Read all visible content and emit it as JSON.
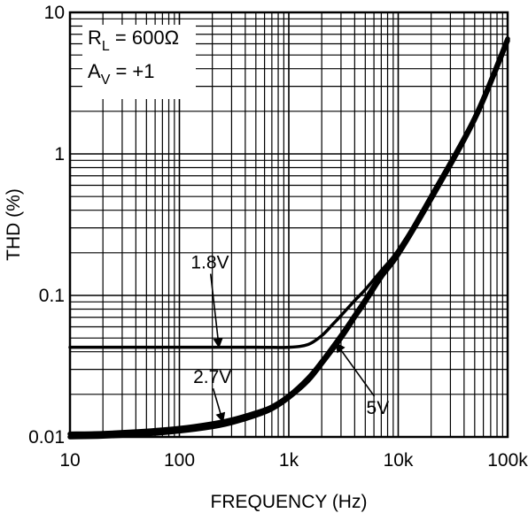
{
  "chart_data": {
    "type": "line",
    "xlabel": "FREQUENCY (Hz)",
    "ylabel": "THD (%)",
    "x_scale": "log",
    "y_scale": "log",
    "xlim": [
      10,
      100000
    ],
    "ylim": [
      0.01,
      10
    ],
    "grid": true,
    "x_ticks": [
      {
        "value": 10,
        "label": "10"
      },
      {
        "value": 100,
        "label": "100"
      },
      {
        "value": 1000,
        "label": "1k"
      },
      {
        "value": 10000,
        "label": "10k"
      },
      {
        "value": 100000,
        "label": "100k"
      }
    ],
    "y_ticks": [
      {
        "value": 0.01,
        "label": "0.01"
      },
      {
        "value": 0.1,
        "label": "0.1"
      },
      {
        "value": 1,
        "label": "1"
      },
      {
        "value": 10,
        "label": "10"
      }
    ],
    "conditions": [
      {
        "main": "R",
        "sub": "L",
        "rest": " = 600Ω"
      },
      {
        "main": "A",
        "sub": "V",
        "rest": " = +1"
      }
    ],
    "series": [
      {
        "name": "1.8V",
        "stroke_weight": "medium",
        "x": [
          10,
          100,
          500,
          1000,
          1500,
          2000,
          2500,
          3000,
          4000,
          5000,
          7000,
          10000,
          20000,
          50000,
          100000
        ],
        "y": [
          0.043,
          0.043,
          0.043,
          0.043,
          0.045,
          0.052,
          0.062,
          0.072,
          0.092,
          0.11,
          0.15,
          0.21,
          0.5,
          1.8,
          6.2
        ]
      },
      {
        "name": "2.7V",
        "stroke_weight": "thick",
        "x": [
          10,
          20,
          50,
          100,
          200,
          300,
          500,
          700,
          1000,
          1500,
          2000,
          3000,
          4000,
          5000,
          7000,
          10000,
          20000,
          50000,
          100000
        ],
        "y": [
          0.0105,
          0.0106,
          0.011,
          0.0115,
          0.0124,
          0.0132,
          0.0148,
          0.0163,
          0.0195,
          0.026,
          0.034,
          0.052,
          0.072,
          0.093,
          0.14,
          0.2,
          0.5,
          1.8,
          6.5
        ]
      },
      {
        "name": "5V",
        "stroke_weight": "thick",
        "x": [
          10,
          20,
          50,
          100,
          200,
          300,
          500,
          700,
          1000,
          1500,
          2000,
          3000,
          4000,
          5000,
          7000,
          10000,
          20000,
          50000,
          100000
        ],
        "y": [
          0.01,
          0.0101,
          0.0105,
          0.011,
          0.0118,
          0.0126,
          0.0142,
          0.0158,
          0.019,
          0.025,
          0.033,
          0.05,
          0.07,
          0.09,
          0.135,
          0.195,
          0.48,
          1.75,
          6.3
        ]
      }
    ],
    "annotations": [
      {
        "label": "1.8V",
        "series": "1.8V",
        "text_x": 190,
        "text_y": 0.155,
        "arrow_to_x": 230,
        "arrow_to_y": 0.043
      },
      {
        "label": "2.7V",
        "series": "2.7V",
        "text_x": 200,
        "text_y": 0.024,
        "arrow_to_x": 250,
        "arrow_to_y": 0.0128
      },
      {
        "label": "5V",
        "series": "5V",
        "text_x": 6500,
        "text_y": 0.0145,
        "arrow_to_x": 2700,
        "arrow_to_y": 0.046
      }
    ]
  }
}
